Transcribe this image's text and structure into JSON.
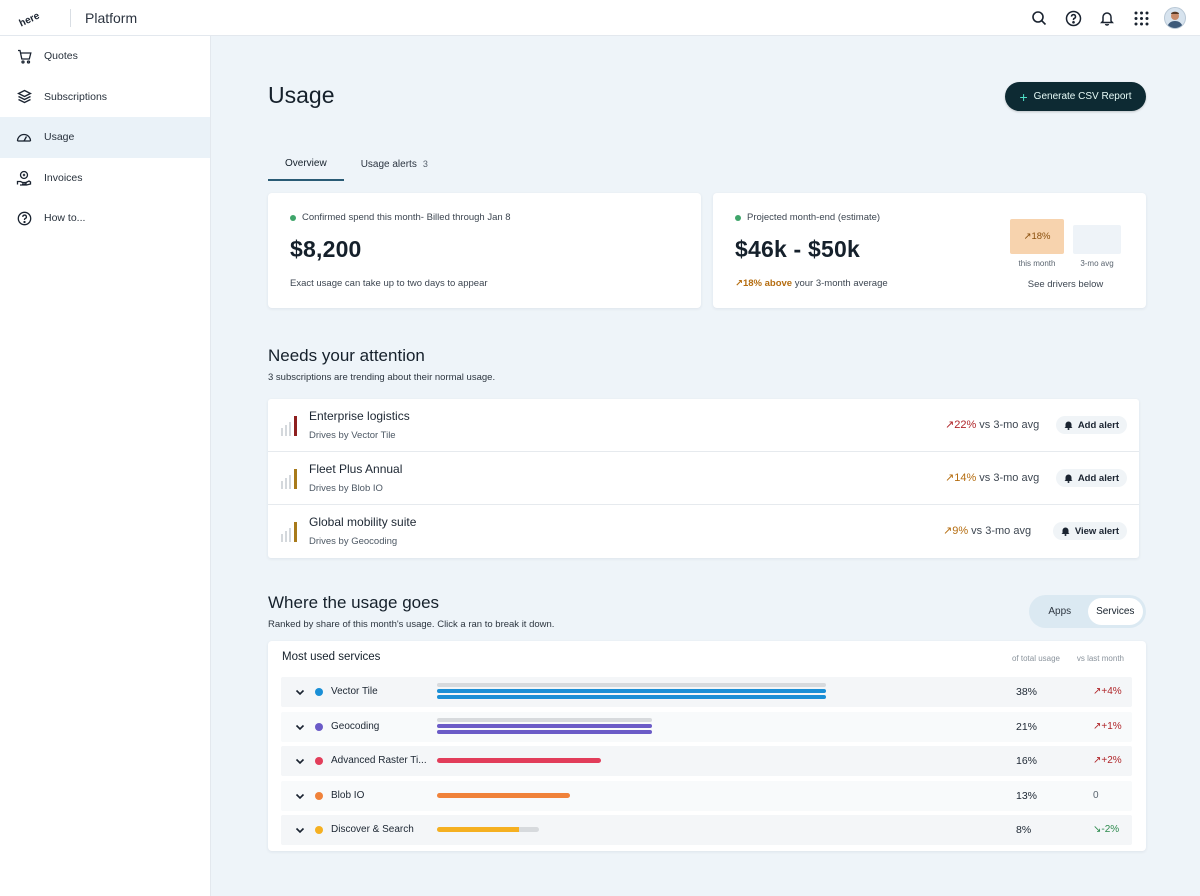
{
  "topbar": {
    "logo_text": "here",
    "app_title": "Platform",
    "icons": [
      "search-icon",
      "help-icon",
      "bell-icon",
      "apps-grid-icon",
      "avatar"
    ]
  },
  "sidebar": {
    "items": [
      {
        "label": "Quotes",
        "icon": "cart-icon",
        "active": false
      },
      {
        "label": "Subscriptions",
        "icon": "layers-icon",
        "active": false
      },
      {
        "label": "Usage",
        "icon": "gauge-icon",
        "active": true
      },
      {
        "label": "Invoices",
        "icon": "invoice-icon",
        "active": false
      },
      {
        "label": "How to...",
        "icon": "help-circle-icon",
        "active": false
      }
    ]
  },
  "page": {
    "title": "Usage",
    "csv_button": "Generate CSV Report",
    "tabs": [
      {
        "label": "Overview",
        "active": true
      },
      {
        "label": "Usage alerts",
        "count": "3",
        "active": false
      }
    ]
  },
  "confirmed": {
    "label": "Confirmed spend this month- Billed through Jan 8",
    "amount": "$8,200",
    "note": "Exact usage can take up to two days to appear"
  },
  "projected": {
    "label": "Projected month-end (estimate)",
    "range": "$46k - $50k",
    "trend_value": "↗18% above",
    "trend_rest": " your 3-month average",
    "mini_this_value": "↗18%",
    "mini_this_label": "this month",
    "mini_avg_label": "3-mo avg",
    "drivers_link": "See drivers below"
  },
  "attention": {
    "heading": "Needs your attention",
    "subheading": "3 subscriptions are trending about their normal usage.",
    "items": [
      {
        "title": "Enterprise logistics",
        "driver": "Drives by Vector Tile",
        "trend": "↗22%",
        "trend_rest": " vs 3-mo avg",
        "action": "Add alert",
        "color": "#8e1f1f"
      },
      {
        "title": "Fleet Plus Annual",
        "driver": "Drives by Blob IO",
        "trend": "↗14%",
        "trend_rest": " vs 3-mo avg",
        "action": "Add alert",
        "color": "#a87a1a"
      },
      {
        "title": "Global mobility suite",
        "driver": "Drives by Geocoding",
        "trend": "↗9%",
        "trend_rest": " vs 3-mo avg",
        "action": "View alert",
        "color": "#a87a1a"
      }
    ]
  },
  "usage": {
    "heading": "Where the usage goes",
    "subheading": "Ranked by share of this month's usage. Click a ran to break it down.",
    "toggle": [
      {
        "label": "Apps",
        "active": false
      },
      {
        "label": "Services",
        "active": true
      }
    ],
    "card_title": "Most used services",
    "col_share": "of total usage",
    "col_delta": "vs last month",
    "rows": [
      {
        "name": "Vector Tile",
        "color": "#1a8fd6",
        "share": "38%",
        "delta": "↗+4%",
        "delta_color": "#b0262a",
        "last_month_pct": 38
      },
      {
        "name": "Geocoding",
        "color": "#6b5bc7",
        "share": "21%",
        "delta": "↗+1%",
        "delta_color": "#b0262a",
        "last_month_pct": 21
      },
      {
        "name": "Advanced Raster Ti...",
        "color": "#e23d5a",
        "share": "16%",
        "delta": "↗+2%",
        "delta_color": "#b0262a",
        "last_month_pct": null
      },
      {
        "name": "Blob IO",
        "color": "#f0823a",
        "share": "13%",
        "delta": "0",
        "delta_color": "#5b6570",
        "last_month_pct": null
      },
      {
        "name": "Discover & Search",
        "color": "#f5b021",
        "share": "8%",
        "delta": "↘-2%",
        "delta_color": "#2d8a4e",
        "last_month_pct": 10
      }
    ]
  }
}
